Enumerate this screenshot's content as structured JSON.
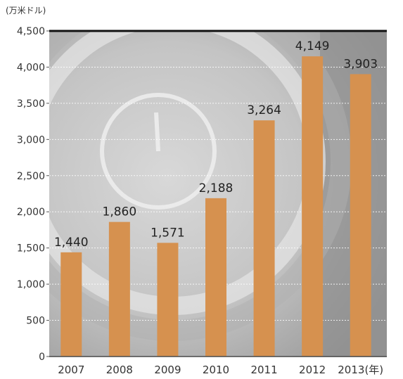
{
  "chart_data": {
    "type": "bar",
    "unit_label": "(万米ドル)",
    "categories": [
      "2007",
      "2008",
      "2009",
      "2010",
      "2011",
      "2012",
      "2013(年)"
    ],
    "values": [
      1440,
      1860,
      1571,
      2188,
      3264,
      4149,
      3903
    ],
    "value_labels": [
      "1,440",
      "1,860",
      "1,571",
      "2,188",
      "3,264",
      "4,149",
      "3,903"
    ],
    "y_ticks": [
      "0",
      "500",
      "1,000",
      "1,500",
      "2,000",
      "2,500",
      "3,000",
      "3,500",
      "4,000",
      "4,500"
    ],
    "ylim": [
      0,
      4500
    ],
    "grid": true,
    "bar_color": "#d6914f",
    "title": "",
    "xlabel": "",
    "ylabel": ""
  }
}
